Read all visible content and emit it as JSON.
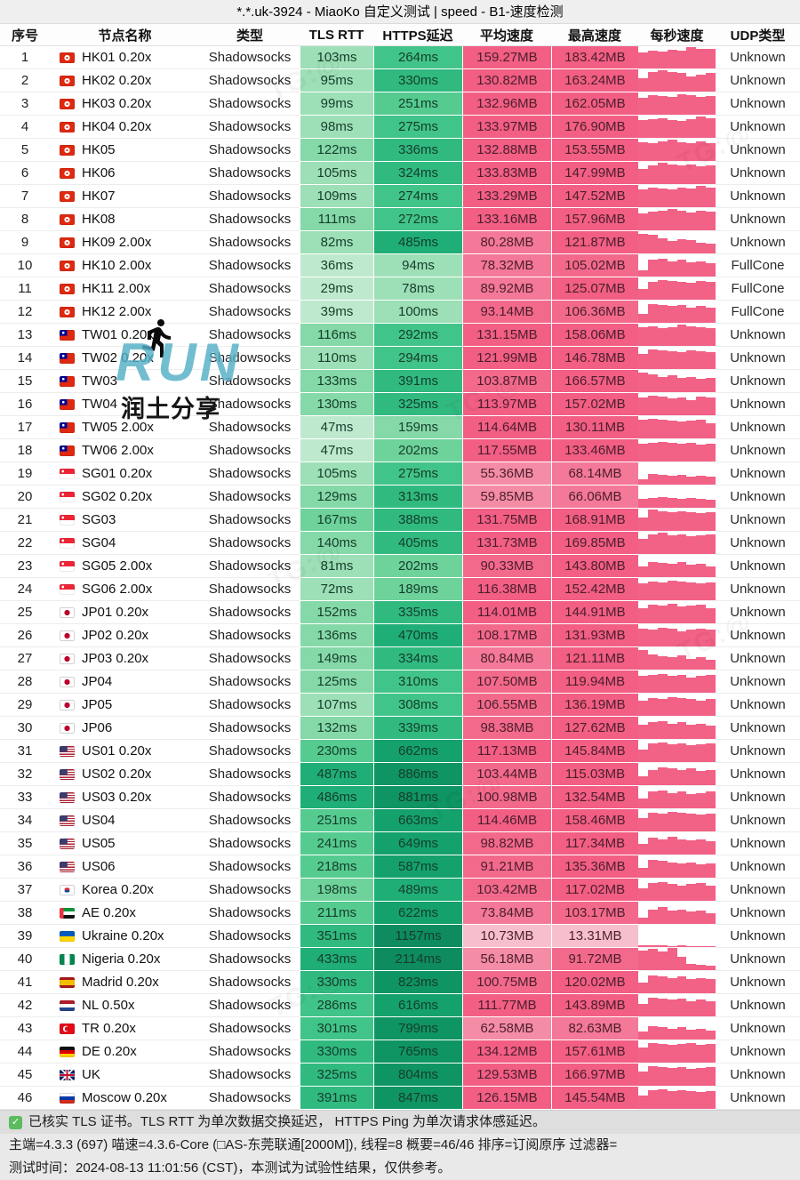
{
  "title": "*.*.uk-3924 - MiaoKo 自定义测试 | speed - B1-速度检测",
  "columns": [
    "序号",
    "节点名称",
    "类型",
    "TLS RTT",
    "HTTPS延迟",
    "平均速度",
    "最高速度",
    "每秒速度",
    "UDP类型"
  ],
  "rows": [
    {
      "no": "1",
      "flag": "hk",
      "name": "HK01 0.20x",
      "type": "Shadowsocks",
      "tls": "103ms",
      "https": "264ms",
      "avg": "159.27MB",
      "max": "183.42MB",
      "udp": "Unknown",
      "bars": [
        0.72,
        0.8,
        0.78,
        0.85,
        0.82,
        0.98,
        0.9,
        0.88
      ]
    },
    {
      "no": "2",
      "flag": "hk",
      "name": "HK02 0.20x",
      "type": "Shadowsocks",
      "tls": "95ms",
      "https": "330ms",
      "avg": "130.82MB",
      "max": "163.24MB",
      "udp": "Unknown",
      "bars": [
        0.6,
        0.88,
        0.95,
        0.9,
        0.86,
        0.68,
        0.78,
        0.84
      ]
    },
    {
      "no": "3",
      "flag": "hk",
      "name": "HK03 0.20x",
      "type": "Shadowsocks",
      "tls": "99ms",
      "https": "251ms",
      "avg": "132.96MB",
      "max": "162.05MB",
      "udp": "Unknown",
      "bars": [
        0.75,
        0.9,
        0.85,
        0.8,
        0.92,
        0.88,
        0.8,
        0.85
      ]
    },
    {
      "no": "4",
      "flag": "hk",
      "name": "HK04 0.20x",
      "type": "Shadowsocks",
      "tls": "98ms",
      "https": "275ms",
      "avg": "133.97MB",
      "max": "176.90MB",
      "udp": "Unknown",
      "bars": [
        0.8,
        0.85,
        0.9,
        0.82,
        0.78,
        0.85,
        0.95,
        0.9
      ]
    },
    {
      "no": "5",
      "flag": "hk",
      "name": "HK05",
      "type": "Shadowsocks",
      "tls": "122ms",
      "https": "336ms",
      "avg": "132.88MB",
      "max": "153.55MB",
      "udp": "Unknown",
      "bars": [
        0.85,
        0.8,
        0.9,
        0.95,
        0.85,
        0.8,
        0.88,
        0.82
      ]
    },
    {
      "no": "6",
      "flag": "hk",
      "name": "HK06",
      "type": "Shadowsocks",
      "tls": "105ms",
      "https": "324ms",
      "avg": "133.83MB",
      "max": "147.99MB",
      "udp": "Unknown",
      "bars": [
        0.7,
        0.85,
        0.95,
        0.9,
        0.85,
        0.9,
        0.8,
        0.85
      ]
    },
    {
      "no": "7",
      "flag": "hk",
      "name": "HK07",
      "type": "Shadowsocks",
      "tls": "109ms",
      "https": "274ms",
      "avg": "133.29MB",
      "max": "147.52MB",
      "udp": "Unknown",
      "bars": [
        0.8,
        0.9,
        0.85,
        0.8,
        0.9,
        0.85,
        0.95,
        0.88
      ]
    },
    {
      "no": "8",
      "flag": "hk",
      "name": "HK08",
      "type": "Shadowsocks",
      "tls": "111ms",
      "https": "272ms",
      "avg": "133.16MB",
      "max": "157.96MB",
      "udp": "Unknown",
      "bars": [
        0.75,
        0.85,
        0.9,
        0.95,
        0.88,
        0.82,
        0.9,
        0.85
      ]
    },
    {
      "no": "9",
      "flag": "hk",
      "name": "HK09 2.00x",
      "type": "Shadowsocks",
      "tls": "82ms",
      "https": "485ms",
      "avg": "80.28MB",
      "max": "121.87MB",
      "udp": "Unknown",
      "bars": [
        0.9,
        0.85,
        0.7,
        0.55,
        0.65,
        0.6,
        0.5,
        0.45
      ]
    },
    {
      "no": "10",
      "flag": "hk",
      "name": "HK10 2.00x",
      "type": "Shadowsocks",
      "tls": "36ms",
      "https": "94ms",
      "avg": "78.32MB",
      "max": "105.02MB",
      "udp": "FullCone",
      "bars": [
        0.3,
        0.75,
        0.8,
        0.7,
        0.75,
        0.65,
        0.7,
        0.6
      ]
    },
    {
      "no": "11",
      "flag": "hk",
      "name": "HK11 2.00x",
      "type": "Shadowsocks",
      "tls": "29ms",
      "https": "78ms",
      "avg": "89.92MB",
      "max": "125.07MB",
      "udp": "FullCone",
      "bars": [
        0.5,
        0.8,
        0.9,
        0.85,
        0.8,
        0.75,
        0.85,
        0.8
      ]
    },
    {
      "no": "12",
      "flag": "hk",
      "name": "HK12 2.00x",
      "type": "Shadowsocks",
      "tls": "39ms",
      "https": "100ms",
      "avg": "93.14MB",
      "max": "106.36MB",
      "udp": "FullCone",
      "bars": [
        0.4,
        0.85,
        0.8,
        0.75,
        0.8,
        0.7,
        0.75,
        0.7
      ]
    },
    {
      "no": "13",
      "flag": "tw",
      "name": "TW01 0.20x",
      "type": "Shadowsocks",
      "tls": "116ms",
      "https": "292ms",
      "avg": "131.15MB",
      "max": "158.06MB",
      "udp": "Unknown",
      "bars": [
        0.85,
        0.9,
        0.8,
        0.85,
        0.95,
        0.9,
        0.85,
        0.8
      ]
    },
    {
      "no": "14",
      "flag": "tw",
      "name": "TW02 0.20x",
      "type": "Shadowsocks",
      "tls": "110ms",
      "https": "294ms",
      "avg": "121.99MB",
      "max": "146.78MB",
      "udp": "Unknown",
      "bars": [
        0.7,
        0.9,
        0.85,
        0.8,
        0.75,
        0.85,
        0.8,
        0.75
      ]
    },
    {
      "no": "15",
      "flag": "tw",
      "name": "TW03",
      "type": "Shadowsocks",
      "tls": "133ms",
      "https": "391ms",
      "avg": "103.87MB",
      "max": "166.57MB",
      "udp": "Unknown",
      "bars": [
        0.9,
        0.8,
        0.7,
        0.75,
        0.65,
        0.7,
        0.6,
        0.65
      ]
    },
    {
      "no": "16",
      "flag": "tw",
      "name": "TW04",
      "type": "Shadowsocks",
      "tls": "130ms",
      "https": "325ms",
      "avg": "113.97MB",
      "max": "157.02MB",
      "udp": "Unknown",
      "bars": [
        0.8,
        0.9,
        0.85,
        0.75,
        0.8,
        0.7,
        0.85,
        0.8
      ]
    },
    {
      "no": "17",
      "flag": "tw",
      "name": "TW05 2.00x",
      "type": "Shadowsocks",
      "tls": "47ms",
      "https": "159ms",
      "avg": "114.64MB",
      "max": "130.11MB",
      "udp": "Unknown",
      "bars": [
        0.85,
        0.9,
        0.85,
        0.8,
        0.75,
        0.8,
        0.85,
        0.7
      ]
    },
    {
      "no": "18",
      "flag": "tw",
      "name": "TW06 2.00x",
      "type": "Shadowsocks",
      "tls": "47ms",
      "https": "202ms",
      "avg": "117.55MB",
      "max": "133.46MB",
      "udp": "Unknown",
      "bars": [
        0.8,
        0.85,
        0.9,
        0.85,
        0.8,
        0.85,
        0.75,
        0.8
      ]
    },
    {
      "no": "19",
      "flag": "sg",
      "name": "SG01 0.20x",
      "type": "Shadowsocks",
      "tls": "105ms",
      "https": "275ms",
      "avg": "55.36MB",
      "max": "68.14MB",
      "udp": "Unknown",
      "bars": [
        0.25,
        0.5,
        0.45,
        0.4,
        0.45,
        0.35,
        0.4,
        0.35
      ]
    },
    {
      "no": "20",
      "flag": "sg",
      "name": "SG02 0.20x",
      "type": "Shadowsocks",
      "tls": "129ms",
      "https": "313ms",
      "avg": "59.85MB",
      "max": "66.06MB",
      "udp": "Unknown",
      "bars": [
        0.4,
        0.45,
        0.5,
        0.45,
        0.4,
        0.45,
        0.4,
        0.35
      ]
    },
    {
      "no": "21",
      "flag": "sg",
      "name": "SG03",
      "type": "Shadowsocks",
      "tls": "167ms",
      "https": "388ms",
      "avg": "131.75MB",
      "max": "168.91MB",
      "udp": "Unknown",
      "bars": [
        0.6,
        0.95,
        0.9,
        0.85,
        0.9,
        0.85,
        0.8,
        0.85
      ]
    },
    {
      "no": "22",
      "flag": "sg",
      "name": "SG04",
      "type": "Shadowsocks",
      "tls": "140ms",
      "https": "405ms",
      "avg": "131.73MB",
      "max": "169.85MB",
      "udp": "Unknown",
      "bars": [
        0.7,
        0.9,
        0.95,
        0.85,
        0.9,
        0.8,
        0.85,
        0.9
      ]
    },
    {
      "no": "23",
      "flag": "sg",
      "name": "SG05 2.00x",
      "type": "Shadowsocks",
      "tls": "81ms",
      "https": "202ms",
      "avg": "90.33MB",
      "max": "143.80MB",
      "udp": "Unknown",
      "bars": [
        0.5,
        0.7,
        0.65,
        0.6,
        0.7,
        0.55,
        0.6,
        0.5
      ]
    },
    {
      "no": "24",
      "flag": "sg",
      "name": "SG06 2.00x",
      "type": "Shadowsocks",
      "tls": "72ms",
      "https": "189ms",
      "avg": "116.38MB",
      "max": "152.42MB",
      "udp": "Unknown",
      "bars": [
        0.75,
        0.85,
        0.8,
        0.9,
        0.85,
        0.8,
        0.75,
        0.8
      ]
    },
    {
      "no": "25",
      "flag": "jp",
      "name": "JP01 0.20x",
      "type": "Shadowsocks",
      "tls": "152ms",
      "https": "335ms",
      "avg": "114.01MB",
      "max": "144.91MB",
      "udp": "Unknown",
      "bars": [
        0.7,
        0.85,
        0.8,
        0.9,
        0.75,
        0.8,
        0.85,
        0.7
      ]
    },
    {
      "no": "26",
      "flag": "jp",
      "name": "JP02 0.20x",
      "type": "Shadowsocks",
      "tls": "136ms",
      "https": "470ms",
      "avg": "108.17MB",
      "max": "131.93MB",
      "udp": "Unknown",
      "bars": [
        0.8,
        0.75,
        0.85,
        0.8,
        0.7,
        0.75,
        0.8,
        0.75
      ]
    },
    {
      "no": "27",
      "flag": "jp",
      "name": "JP03 0.20x",
      "type": "Shadowsocks",
      "tls": "149ms",
      "https": "334ms",
      "avg": "80.84MB",
      "max": "121.11MB",
      "udp": "Unknown",
      "bars": [
        0.9,
        0.7,
        0.6,
        0.55,
        0.65,
        0.5,
        0.55,
        0.45
      ]
    },
    {
      "no": "28",
      "flag": "jp",
      "name": "JP04",
      "type": "Shadowsocks",
      "tls": "125ms",
      "https": "310ms",
      "avg": "107.50MB",
      "max": "119.94MB",
      "udp": "Unknown",
      "bars": [
        0.75,
        0.8,
        0.85,
        0.75,
        0.8,
        0.7,
        0.75,
        0.8
      ]
    },
    {
      "no": "29",
      "flag": "jp",
      "name": "JP05",
      "type": "Shadowsocks",
      "tls": "107ms",
      "https": "308ms",
      "avg": "106.55MB",
      "max": "136.19MB",
      "udp": "Unknown",
      "bars": [
        0.7,
        0.8,
        0.75,
        0.85,
        0.8,
        0.75,
        0.7,
        0.75
      ]
    },
    {
      "no": "30",
      "flag": "jp",
      "name": "JP06",
      "type": "Shadowsocks",
      "tls": "132ms",
      "https": "339ms",
      "avg": "98.38MB",
      "max": "127.62MB",
      "udp": "Unknown",
      "bars": [
        0.65,
        0.75,
        0.8,
        0.7,
        0.75,
        0.65,
        0.7,
        0.6
      ]
    },
    {
      "no": "31",
      "flag": "us",
      "name": "US01 0.20x",
      "type": "Shadowsocks",
      "tls": "230ms",
      "https": "662ms",
      "avg": "117.13MB",
      "max": "145.84MB",
      "udp": "Unknown",
      "bars": [
        0.55,
        0.85,
        0.9,
        0.8,
        0.85,
        0.75,
        0.8,
        0.85
      ]
    },
    {
      "no": "32",
      "flag": "us",
      "name": "US02 0.20x",
      "type": "Shadowsocks",
      "tls": "487ms",
      "https": "886ms",
      "avg": "103.44MB",
      "max": "115.03MB",
      "udp": "Unknown",
      "bars": [
        0.4,
        0.7,
        0.8,
        0.75,
        0.7,
        0.75,
        0.65,
        0.7
      ]
    },
    {
      "no": "33",
      "flag": "us",
      "name": "US03 0.20x",
      "type": "Shadowsocks",
      "tls": "486ms",
      "https": "881ms",
      "avg": "100.98MB",
      "max": "132.54MB",
      "udp": "Unknown",
      "bars": [
        0.45,
        0.75,
        0.8,
        0.7,
        0.75,
        0.65,
        0.7,
        0.75
      ]
    },
    {
      "no": "34",
      "flag": "us",
      "name": "US04",
      "type": "Shadowsocks",
      "tls": "251ms",
      "https": "663ms",
      "avg": "114.46MB",
      "max": "158.46MB",
      "udp": "Unknown",
      "bars": [
        0.6,
        0.85,
        0.8,
        0.9,
        0.85,
        0.8,
        0.75,
        0.8
      ]
    },
    {
      "no": "35",
      "flag": "us",
      "name": "US05",
      "type": "Shadowsocks",
      "tls": "241ms",
      "https": "649ms",
      "avg": "98.82MB",
      "max": "117.34MB",
      "udp": "Unknown",
      "bars": [
        0.5,
        0.75,
        0.7,
        0.8,
        0.7,
        0.65,
        0.7,
        0.6
      ]
    },
    {
      "no": "36",
      "flag": "us",
      "name": "US06",
      "type": "Shadowsocks",
      "tls": "218ms",
      "https": "587ms",
      "avg": "91.21MB",
      "max": "135.36MB",
      "udp": "Unknown",
      "bars": [
        0.45,
        0.8,
        0.75,
        0.7,
        0.65,
        0.7,
        0.6,
        0.65
      ]
    },
    {
      "no": "37",
      "flag": "kr",
      "name": "Korea 0.20x",
      "type": "Shadowsocks",
      "tls": "198ms",
      "https": "489ms",
      "avg": "103.42MB",
      "max": "117.02MB",
      "udp": "Unknown",
      "bars": [
        0.55,
        0.8,
        0.85,
        0.75,
        0.7,
        0.75,
        0.8,
        0.7
      ]
    },
    {
      "no": "38",
      "flag": "ae",
      "name": "AE 0.20x",
      "type": "Shadowsocks",
      "tls": "211ms",
      "https": "622ms",
      "avg": "73.84MB",
      "max": "103.17MB",
      "udp": "Unknown",
      "bars": [
        0.3,
        0.65,
        0.75,
        0.6,
        0.65,
        0.55,
        0.6,
        0.5
      ]
    },
    {
      "no": "39",
      "flag": "ua",
      "name": "Ukraine 0.20x",
      "type": "Shadowsocks",
      "tls": "351ms",
      "https": "1157ms",
      "avg": "10.73MB",
      "max": "13.31MB",
      "udp": "Unknown",
      "bars": [
        0.08,
        0.1,
        0.08,
        0.06,
        0.08,
        0.05,
        0.06,
        0.05
      ]
    },
    {
      "no": "40",
      "flag": "ng",
      "name": "Nigeria 0.20x",
      "type": "Shadowsocks",
      "tls": "433ms",
      "https": "2114ms",
      "avg": "56.18MB",
      "max": "91.72MB",
      "udp": "Unknown",
      "bars": [
        0.9,
        0.95,
        0.85,
        1,
        0.6,
        0.3,
        0.25,
        0.2
      ]
    },
    {
      "no": "41",
      "flag": "es",
      "name": "Madrid 0.20x",
      "type": "Shadowsocks",
      "tls": "330ms",
      "https": "823ms",
      "avg": "100.75MB",
      "max": "120.02MB",
      "udp": "Unknown",
      "bars": [
        0.5,
        0.8,
        0.75,
        0.7,
        0.75,
        0.65,
        0.7,
        0.65
      ]
    },
    {
      "no": "42",
      "flag": "nl",
      "name": "NL 0.50x",
      "type": "Shadowsocks",
      "tls": "286ms",
      "https": "616ms",
      "avg": "111.77MB",
      "max": "143.89MB",
      "udp": "Unknown",
      "bars": [
        0.55,
        0.85,
        0.8,
        0.75,
        0.8,
        0.7,
        0.75,
        0.7
      ]
    },
    {
      "no": "43",
      "flag": "tr",
      "name": "TR 0.20x",
      "type": "Shadowsocks",
      "tls": "301ms",
      "https": "799ms",
      "avg": "62.58MB",
      "max": "82.63MB",
      "udp": "Unknown",
      "bars": [
        0.35,
        0.6,
        0.55,
        0.5,
        0.55,
        0.45,
        0.5,
        0.4
      ]
    },
    {
      "no": "44",
      "flag": "de",
      "name": "DE 0.20x",
      "type": "Shadowsocks",
      "tls": "330ms",
      "https": "765ms",
      "avg": "134.12MB",
      "max": "157.61MB",
      "udp": "Unknown",
      "bars": [
        0.7,
        0.9,
        0.85,
        0.8,
        0.85,
        0.9,
        0.8,
        0.85
      ]
    },
    {
      "no": "45",
      "flag": "uk",
      "name": "UK",
      "type": "Shadowsocks",
      "tls": "325ms",
      "https": "804ms",
      "avg": "129.53MB",
      "max": "166.97MB",
      "udp": "Unknown",
      "bars": [
        0.65,
        0.9,
        0.85,
        0.8,
        0.85,
        0.75,
        0.8,
        0.85
      ]
    },
    {
      "no": "46",
      "flag": "ru",
      "name": "Moscow 0.20x",
      "type": "Shadowsocks",
      "tls": "391ms",
      "https": "847ms",
      "avg": "126.15MB",
      "max": "145.54MB",
      "udp": "Unknown",
      "bars": [
        0.6,
        0.85,
        0.9,
        0.8,
        0.85,
        0.8,
        0.75,
        0.8
      ]
    }
  ],
  "footer": {
    "line1": "已核实 TLS 证书。TLS RTT 为单次数据交换延迟， HTTPS Ping 为单次请求体感延迟。",
    "line2": "主端=4.3.3 (697) 喵速=4.3.6-Core (□AS-东莞联通[2000M]), 线程=8 概要=46/46 排序=订阅原序 过滤器=",
    "line3": "测试时间：2024-08-13 11:01:56 (CST)，本测试为试验性结果，仅供参考。",
    "check_glyph": "✓"
  },
  "watermark": {
    "run_text": "RUN",
    "share_text": "润土分享",
    "tg_text": "TG:@"
  },
  "colors": {
    "latency_scale": [
      [
        50,
        "#BFE9CE"
      ],
      [
        110,
        "#9DDFB6"
      ],
      [
        160,
        "#85D9A8"
      ],
      [
        210,
        "#6ED29B"
      ],
      [
        260,
        "#55CB90"
      ],
      [
        310,
        "#41C489"
      ],
      [
        420,
        "#30BA80"
      ],
      [
        520,
        "#1FAE76"
      ],
      [
        700,
        "#14A16C"
      ],
      [
        900,
        "#0F9464"
      ],
      [
        999999,
        "#0E8C5F"
      ]
    ],
    "speed_scale": [
      [
        20,
        "#F7BFCD"
      ],
      [
        45,
        "#F6A0B5"
      ],
      [
        65,
        "#F58CA6"
      ],
      [
        90,
        "#F47897"
      ],
      [
        110,
        "#F3698C"
      ],
      [
        999999,
        "#F25E84"
      ]
    ],
    "bar_color": "#F26186",
    "run_teal": "#54AFC6"
  }
}
